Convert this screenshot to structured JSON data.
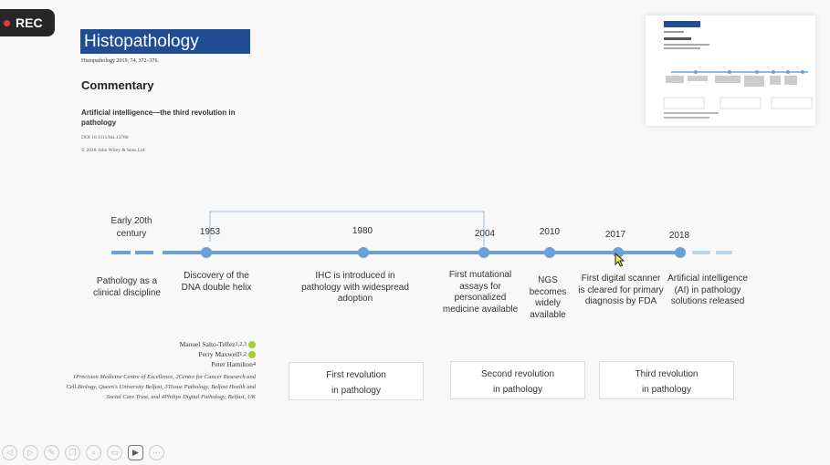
{
  "recording": {
    "label": "REC",
    "dot_color": "#e53935"
  },
  "journal": {
    "name": "Histopathology",
    "citation": "Histopathology 2019, 74, 372–376.",
    "section": "Commentary",
    "article_title": "Artificial intelligence—the third revolution in pathology",
    "doi": "DOI 10.1111/his.13760",
    "copyright": "© 2018 John Wiley & Sons Ltd",
    "banner_color": "#1f4e95"
  },
  "timeline": {
    "line_color": "#6aa1d8",
    "bracket_color": "#9db8d6",
    "milestones": [
      {
        "year": "Early 20th century",
        "event": "Pathology as a clinical discipline"
      },
      {
        "year": "1953",
        "event": "Discovery of the DNA double helix"
      },
      {
        "year": "1980",
        "event": "IHC is introduced in pathology with widespread adoption"
      },
      {
        "year": "2004",
        "event": "First mutational assays for personalized medicine available"
      },
      {
        "year": "2010",
        "event": "NGS becomes widely available"
      },
      {
        "year": "2017",
        "event": "First digital scanner is cleared for primary diagnosis by FDA"
      },
      {
        "year": "2018",
        "event": "Artificial intelligence (AI) in pathology solutions released"
      }
    ]
  },
  "authors": [
    {
      "name": "Manuel Salto-Tellez",
      "sup": "1,2,3"
    },
    {
      "name": "Perry Maxwell",
      "sup": "1,2"
    },
    {
      "name": "Peter Hamilton",
      "sup": "4"
    }
  ],
  "affiliations": "1Precision Medicine Centre of Excellence, 2Centre for Cancer Research and Cell Biology, Queen's University Belfast, 3Tissue Pathology, Belfast Health and Social Care Trust, and 4Philips Digital Pathology, Belfast, UK",
  "revolutions": [
    {
      "line1": "First revolution",
      "line2": "in pathology"
    },
    {
      "line1": "Second revolution",
      "line2": "in pathology"
    },
    {
      "line1": "Third revolution",
      "line2": "in pathology"
    }
  ],
  "toolbar": {
    "buttons": [
      {
        "icon": "previous-icon"
      },
      {
        "icon": "next-icon"
      },
      {
        "icon": "pen-icon"
      },
      {
        "icon": "slides-icon"
      },
      {
        "icon": "zoom-icon"
      },
      {
        "icon": "subtitles-icon"
      },
      {
        "icon": "camera-icon"
      },
      {
        "icon": "more-icon"
      }
    ]
  }
}
